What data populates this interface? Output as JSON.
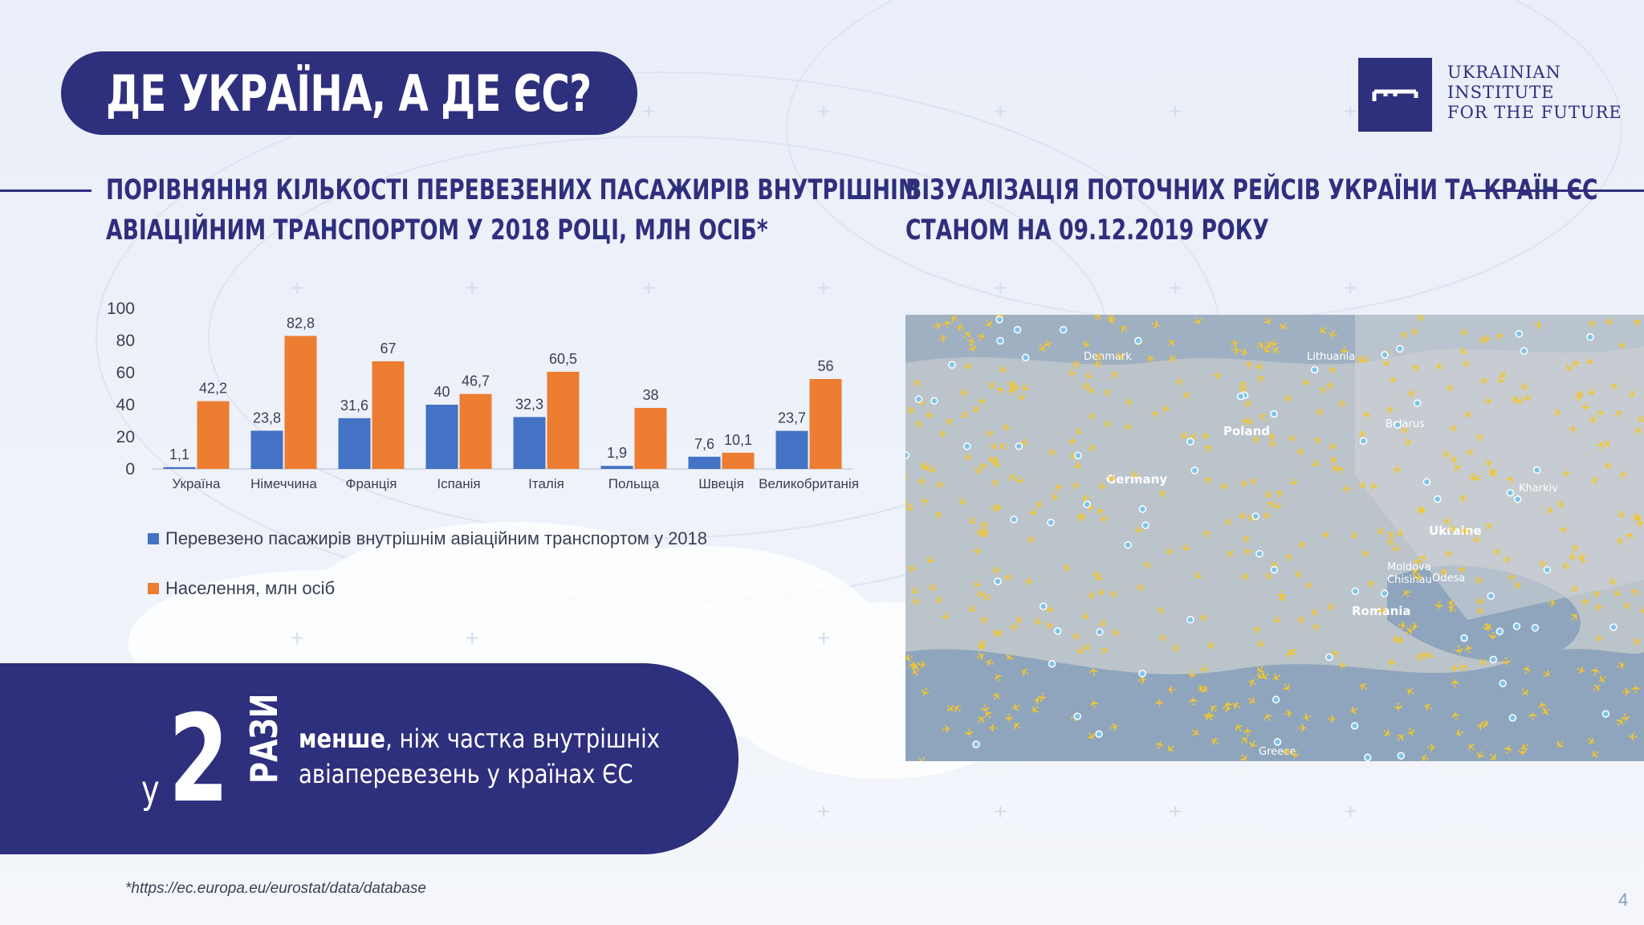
{
  "title": "ДЕ УКРАЇНА, А ДЕ ЄС?",
  "logo": {
    "lines": [
      "UKRAINIAN",
      "INSTITUTE",
      "FOR THE FUTURE"
    ]
  },
  "chart_section": {
    "subtitle_line1": "ПОРІВНЯННЯ КІЛЬКОСТІ ПЕРЕВЕЗЕНИХ ПАСАЖИРІВ ВНУТРІШНІМ",
    "subtitle_line2": "АВІАЦІЙНИМ ТРАНСПОРТОМ У 2018 РОЦІ, МЛН ОСІБ*"
  },
  "map_section": {
    "subtitle_line1": "ВІЗУАЛІЗАЦІЯ ПОТОЧНИХ РЕЙСІВ УКРАЇНИ ТА КРАЇН ЄС",
    "subtitle_line2": "СТАНОМ НА 09.12.2019 РОКУ",
    "labels": [
      "Denmark",
      "Lithuania",
      "Belarus",
      "Poland",
      "Germany",
      "Ukraine",
      "Moldova",
      "Romania",
      "Odesa",
      "Chisinau",
      "Kharkiv",
      "Greece"
    ]
  },
  "chart_data": {
    "type": "bar",
    "categories": [
      "Україна",
      "Німеччина",
      "Франція",
      "Іспанія",
      "Італія",
      "Польща",
      "Швеція",
      "Великобританія"
    ],
    "series": [
      {
        "name": "Перевезено пасажирів внутрішнім авіаційним транспортом у 2018",
        "values": [
          1.1,
          23.8,
          31.6,
          40,
          32.3,
          1.9,
          7.6,
          23.7
        ],
        "color": "#4472c4"
      },
      {
        "name": "Населення, млн осіб",
        "values": [
          42.2,
          82.8,
          67,
          46.7,
          60.5,
          38,
          10.1,
          56
        ],
        "color": "#ed7d31"
      }
    ],
    "value_labels": [
      [
        "1,1",
        "23,8",
        "31,6",
        "40",
        "32,3",
        "1,9",
        "7,6",
        "23,7"
      ],
      [
        "42,2",
        "82,8",
        "67",
        "46,7",
        "60,5",
        "38",
        "10,1",
        "56"
      ]
    ],
    "yticks": [
      0,
      20,
      40,
      60,
      80,
      100
    ],
    "ylim": [
      0,
      100
    ],
    "legend_position": "bottom-left",
    "grid": false
  },
  "callout": {
    "prefix": "у",
    "number": "2",
    "unit": "РАЗИ",
    "bold_word": "менше",
    "rest_line1": ", ніж частка внутрішніх",
    "line2": "авіаперевезень у країнах ЄС"
  },
  "footnote": "*https://ec.europa.eu/eurostat/data/database",
  "page_number": "4",
  "colors": {
    "navy": "#2e2f7d",
    "blue": "#4472c4",
    "orange": "#ed7d31",
    "plane": "#f2c62f"
  }
}
